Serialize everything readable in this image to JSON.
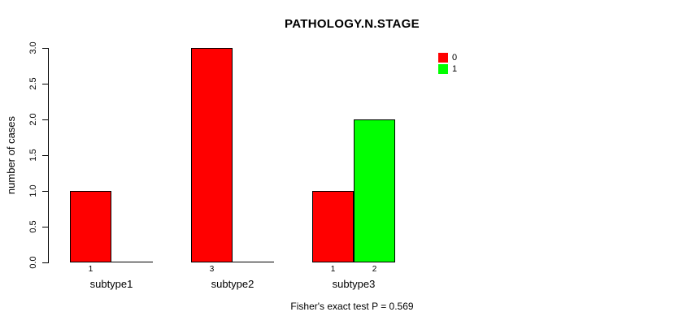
{
  "chart_data": {
    "type": "bar",
    "grouped": true,
    "title": "PATHOLOGY.N.STAGE",
    "ylabel": "number of cases",
    "xlabel": "",
    "footnote": "Fisher's exact test P = 0.569",
    "categories": [
      "subtype1",
      "subtype2",
      "subtype3"
    ],
    "series": [
      {
        "name": "0",
        "color": "#FF0000",
        "values": [
          1,
          3,
          1
        ]
      },
      {
        "name": "1",
        "color": "#00FF00",
        "values": [
          0,
          0,
          2
        ]
      }
    ],
    "bar_value_labels": [
      [
        "1",
        ""
      ],
      [
        "3",
        ""
      ],
      [
        "1",
        "2"
      ]
    ],
    "y_ticks": [
      "0.0",
      "0.5",
      "1.0",
      "1.5",
      "2.0",
      "2.5",
      "3.0"
    ],
    "ylim": [
      0,
      3
    ],
    "grid": false,
    "legend_position": "top-right-inside",
    "colors": {
      "bar_border": "#000000",
      "axis": "#000000",
      "text": "#000000",
      "background": "#FFFFFF"
    }
  }
}
